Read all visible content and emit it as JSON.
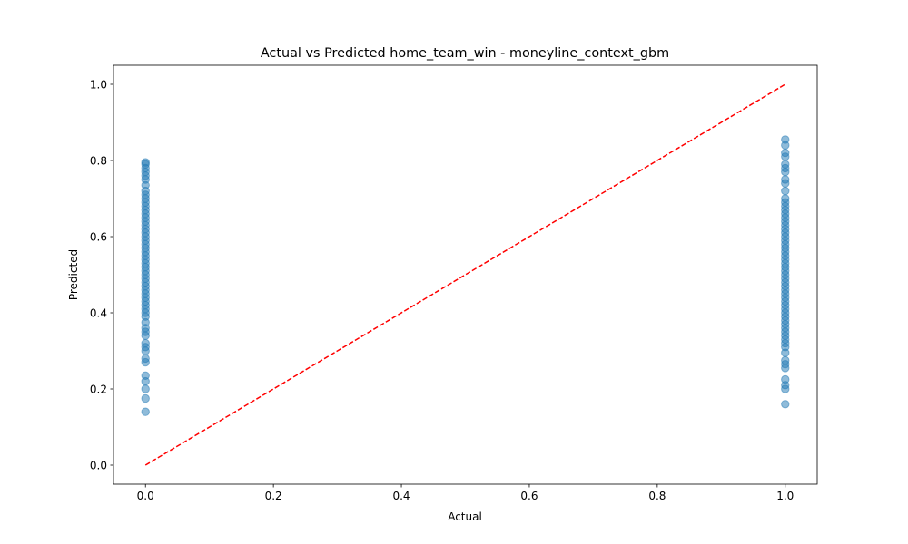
{
  "chart_data": {
    "type": "scatter",
    "title": "Actual vs Predicted home_team_win - moneyline_context_gbm",
    "xlabel": "Actual",
    "ylabel": "Predicted",
    "xlim": [
      -0.05,
      1.05
    ],
    "ylim": [
      -0.05,
      1.05
    ],
    "xticks": [
      0.0,
      0.2,
      0.4,
      0.6,
      0.8,
      1.0
    ],
    "xtick_labels": [
      "0.0",
      "0.2",
      "0.4",
      "0.6",
      "0.8",
      "1.0"
    ],
    "yticks": [
      0.0,
      0.2,
      0.4,
      0.6,
      0.8,
      1.0
    ],
    "ytick_labels": [
      "0.0",
      "0.2",
      "0.4",
      "0.6",
      "0.8",
      "1.0"
    ],
    "grid": false,
    "series": [
      {
        "marker_color": "#1f77b4",
        "alpha": 0.5,
        "points": [
          {
            "x": 0,
            "y": 0.14
          },
          {
            "x": 0,
            "y": 0.175
          },
          {
            "x": 0,
            "y": 0.2
          },
          {
            "x": 0,
            "y": 0.22
          },
          {
            "x": 0,
            "y": 0.235
          },
          {
            "x": 0,
            "y": 0.27
          },
          {
            "x": 0,
            "y": 0.28
          },
          {
            "x": 0,
            "y": 0.3
          },
          {
            "x": 0,
            "y": 0.31
          },
          {
            "x": 0,
            "y": 0.32
          },
          {
            "x": 0,
            "y": 0.34
          },
          {
            "x": 0,
            "y": 0.35
          },
          {
            "x": 0,
            "y": 0.36
          },
          {
            "x": 0,
            "y": 0.375
          },
          {
            "x": 0,
            "y": 0.39
          },
          {
            "x": 0,
            "y": 0.4
          },
          {
            "x": 0,
            "y": 0.41
          },
          {
            "x": 0,
            "y": 0.42
          },
          {
            "x": 0,
            "y": 0.43
          },
          {
            "x": 0,
            "y": 0.44
          },
          {
            "x": 0,
            "y": 0.45
          },
          {
            "x": 0,
            "y": 0.46
          },
          {
            "x": 0,
            "y": 0.47
          },
          {
            "x": 0,
            "y": 0.48
          },
          {
            "x": 0,
            "y": 0.49
          },
          {
            "x": 0,
            "y": 0.5
          },
          {
            "x": 0,
            "y": 0.51
          },
          {
            "x": 0,
            "y": 0.52
          },
          {
            "x": 0,
            "y": 0.53
          },
          {
            "x": 0,
            "y": 0.54
          },
          {
            "x": 0,
            "y": 0.55
          },
          {
            "x": 0,
            "y": 0.56
          },
          {
            "x": 0,
            "y": 0.57
          },
          {
            "x": 0,
            "y": 0.58
          },
          {
            "x": 0,
            "y": 0.59
          },
          {
            "x": 0,
            "y": 0.6
          },
          {
            "x": 0,
            "y": 0.61
          },
          {
            "x": 0,
            "y": 0.62
          },
          {
            "x": 0,
            "y": 0.63
          },
          {
            "x": 0,
            "y": 0.64
          },
          {
            "x": 0,
            "y": 0.65
          },
          {
            "x": 0,
            "y": 0.66
          },
          {
            "x": 0,
            "y": 0.67
          },
          {
            "x": 0,
            "y": 0.68
          },
          {
            "x": 0,
            "y": 0.69
          },
          {
            "x": 0,
            "y": 0.7
          },
          {
            "x": 0,
            "y": 0.71
          },
          {
            "x": 0,
            "y": 0.72
          },
          {
            "x": 0,
            "y": 0.735
          },
          {
            "x": 0,
            "y": 0.75
          },
          {
            "x": 0,
            "y": 0.76
          },
          {
            "x": 0,
            "y": 0.77
          },
          {
            "x": 0,
            "y": 0.78
          },
          {
            "x": 0,
            "y": 0.79
          },
          {
            "x": 0,
            "y": 0.795
          },
          {
            "x": 1,
            "y": 0.16
          },
          {
            "x": 1,
            "y": 0.2
          },
          {
            "x": 1,
            "y": 0.21
          },
          {
            "x": 1,
            "y": 0.225
          },
          {
            "x": 1,
            "y": 0.255
          },
          {
            "x": 1,
            "y": 0.265
          },
          {
            "x": 1,
            "y": 0.275
          },
          {
            "x": 1,
            "y": 0.295
          },
          {
            "x": 1,
            "y": 0.31
          },
          {
            "x": 1,
            "y": 0.32
          },
          {
            "x": 1,
            "y": 0.33
          },
          {
            "x": 1,
            "y": 0.34
          },
          {
            "x": 1,
            "y": 0.35
          },
          {
            "x": 1,
            "y": 0.36
          },
          {
            "x": 1,
            "y": 0.37
          },
          {
            "x": 1,
            "y": 0.38
          },
          {
            "x": 1,
            "y": 0.39
          },
          {
            "x": 1,
            "y": 0.4
          },
          {
            "x": 1,
            "y": 0.41
          },
          {
            "x": 1,
            "y": 0.42
          },
          {
            "x": 1,
            "y": 0.43
          },
          {
            "x": 1,
            "y": 0.44
          },
          {
            "x": 1,
            "y": 0.45
          },
          {
            "x": 1,
            "y": 0.46
          },
          {
            "x": 1,
            "y": 0.47
          },
          {
            "x": 1,
            "y": 0.48
          },
          {
            "x": 1,
            "y": 0.49
          },
          {
            "x": 1,
            "y": 0.5
          },
          {
            "x": 1,
            "y": 0.51
          },
          {
            "x": 1,
            "y": 0.52
          },
          {
            "x": 1,
            "y": 0.53
          },
          {
            "x": 1,
            "y": 0.54
          },
          {
            "x": 1,
            "y": 0.55
          },
          {
            "x": 1,
            "y": 0.56
          },
          {
            "x": 1,
            "y": 0.57
          },
          {
            "x": 1,
            "y": 0.58
          },
          {
            "x": 1,
            "y": 0.59
          },
          {
            "x": 1,
            "y": 0.6
          },
          {
            "x": 1,
            "y": 0.61
          },
          {
            "x": 1,
            "y": 0.62
          },
          {
            "x": 1,
            "y": 0.63
          },
          {
            "x": 1,
            "y": 0.64
          },
          {
            "x": 1,
            "y": 0.65
          },
          {
            "x": 1,
            "y": 0.66
          },
          {
            "x": 1,
            "y": 0.67
          },
          {
            "x": 1,
            "y": 0.68
          },
          {
            "x": 1,
            "y": 0.69
          },
          {
            "x": 1,
            "y": 0.7
          },
          {
            "x": 1,
            "y": 0.72
          },
          {
            "x": 1,
            "y": 0.74
          },
          {
            "x": 1,
            "y": 0.75
          },
          {
            "x": 1,
            "y": 0.77
          },
          {
            "x": 1,
            "y": 0.78
          },
          {
            "x": 1,
            "y": 0.79
          },
          {
            "x": 1,
            "y": 0.81
          },
          {
            "x": 1,
            "y": 0.82
          },
          {
            "x": 1,
            "y": 0.84
          },
          {
            "x": 1,
            "y": 0.855
          }
        ]
      }
    ],
    "reference_line": {
      "x": [
        0,
        1
      ],
      "y": [
        0,
        1
      ],
      "color": "#ff0000",
      "style": "dashed"
    }
  }
}
